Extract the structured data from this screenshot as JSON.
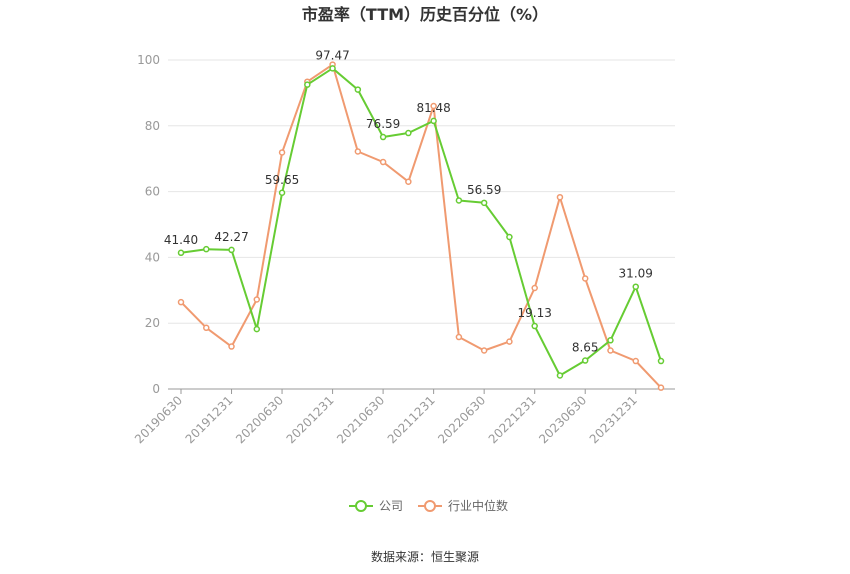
{
  "chart_data": {
    "type": "line",
    "title": "市盈率（TTM）历史百分位（%）",
    "xlabel": "",
    "ylabel": "",
    "ylim": [
      0,
      100
    ],
    "yticks": [
      0,
      20,
      40,
      60,
      80,
      100
    ],
    "x_tick_labels": [
      "20190630",
      "20191231",
      "20200630",
      "20201231",
      "20210630",
      "20211231",
      "20220630",
      "20221231",
      "20230630",
      "20231231"
    ],
    "grid": true,
    "legend_position": "bottom-center",
    "series": [
      {
        "name": "公司",
        "color": "#66cc33",
        "values": [
          41.4,
          42.5,
          42.27,
          18.2,
          59.65,
          92.5,
          97.47,
          91.0,
          76.59,
          77.8,
          81.48,
          57.3,
          56.59,
          46.2,
          19.13,
          4.1,
          8.65,
          14.8,
          31.09,
          8.5
        ],
        "labels": {
          "0": "41.40",
          "2": "42.27",
          "4": "59.65",
          "6": "97.47",
          "8": "76.59",
          "10": "81.48",
          "12": "56.59",
          "14": "19.13",
          "16": "8.65",
          "18": "31.09"
        }
      },
      {
        "name": "行业中位数",
        "color": "#f09a70",
        "values": [
          26.4,
          18.6,
          12.9,
          27.2,
          71.9,
          93.4,
          98.6,
          72.2,
          69.0,
          63.0,
          86.0,
          15.8,
          11.7,
          14.4,
          30.7,
          58.3,
          33.6,
          11.7,
          8.5,
          0.4
        ]
      }
    ]
  },
  "source": "数据来源：恒生聚源"
}
